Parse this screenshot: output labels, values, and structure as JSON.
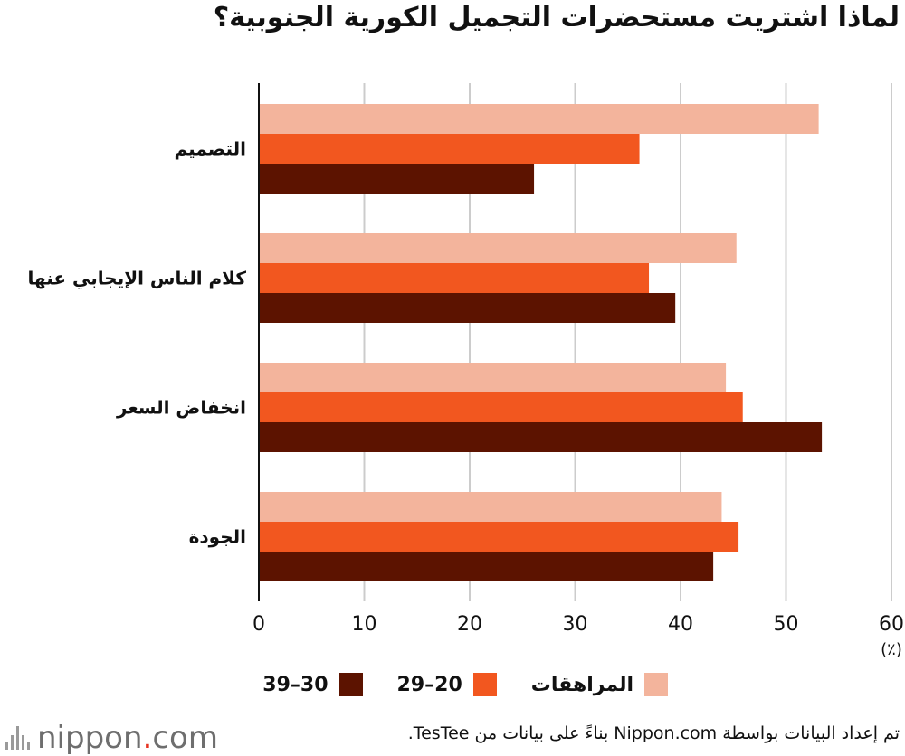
{
  "title": "لماذا اشتريت مستحضرات التجميل الكورية الجنوبية؟",
  "chart_data": {
    "type": "bar",
    "orientation": "horizontal",
    "categories": [
      "التصميم",
      "كلام الناس الإيجابي عنها",
      "انخفاض السعر",
      "الجودة"
    ],
    "series": [
      {
        "name": "المراهقات",
        "color": "#f3b49c",
        "values": [
          53.1,
          45.3,
          44.3,
          43.9
        ]
      },
      {
        "name": "20–29",
        "color": "#f2571f",
        "values": [
          36.1,
          37.0,
          45.9,
          45.5
        ]
      },
      {
        "name": "30–39",
        "color": "#5c1300",
        "values": [
          26.1,
          39.5,
          53.4,
          43.1
        ]
      }
    ],
    "xlim": [
      0,
      60
    ],
    "xticks": [
      "0",
      "10",
      "20",
      "30",
      "40",
      "50",
      "60"
    ],
    "xunit": "(٪)",
    "grid": true,
    "legend_position": "bottom"
  },
  "legend": {
    "items": [
      {
        "label": "المراهقات",
        "color": "#f3b49c"
      },
      {
        "label": "20–29",
        "color": "#f2571f"
      },
      {
        "label": "30–39",
        "color": "#5c1300"
      }
    ]
  },
  "logo": {
    "text_main": "nippon",
    "text_dot": ".",
    "text_tld": "com"
  },
  "source": "تم إعداد البيانات بواسطة Nippon.com بناءً على بيانات من TesTee."
}
